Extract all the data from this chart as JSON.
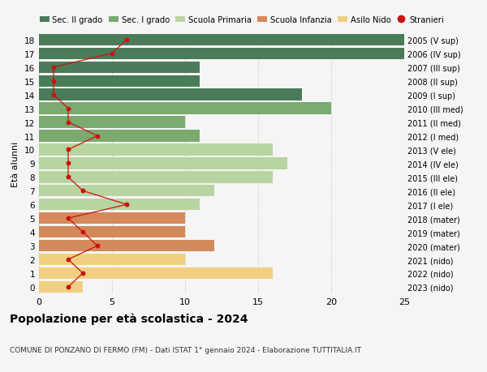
{
  "ages": [
    18,
    17,
    16,
    15,
    14,
    13,
    12,
    11,
    10,
    9,
    8,
    7,
    6,
    5,
    4,
    3,
    2,
    1,
    0
  ],
  "right_labels": [
    "2005 (V sup)",
    "2006 (IV sup)",
    "2007 (III sup)",
    "2008 (II sup)",
    "2009 (I sup)",
    "2010 (III med)",
    "2011 (II med)",
    "2012 (I med)",
    "2013 (V ele)",
    "2014 (IV ele)",
    "2015 (III ele)",
    "2016 (II ele)",
    "2017 (I ele)",
    "2018 (mater)",
    "2019 (mater)",
    "2020 (mater)",
    "2021 (nido)",
    "2022 (nido)",
    "2023 (nido)"
  ],
  "bar_values": [
    25,
    25,
    11,
    11,
    18,
    20,
    10,
    11,
    16,
    17,
    16,
    12,
    11,
    10,
    10,
    12,
    10,
    16,
    3
  ],
  "bar_colors": [
    "#4a7c59",
    "#4a7c59",
    "#4a7c59",
    "#4a7c59",
    "#4a7c59",
    "#7aaa6e",
    "#7aaa6e",
    "#7aaa6e",
    "#b8d4a0",
    "#b8d4a0",
    "#b8d4a0",
    "#b8d4a0",
    "#b8d4a0",
    "#d4895a",
    "#d4895a",
    "#d4895a",
    "#f0d080",
    "#f0d080",
    "#f0d080"
  ],
  "stranieri_values": [
    6,
    5,
    1,
    1,
    1,
    2,
    2,
    4,
    2,
    2,
    2,
    3,
    6,
    2,
    3,
    4,
    2,
    3,
    2
  ],
  "legend_labels": [
    "Sec. II grado",
    "Sec. I grado",
    "Scuola Primaria",
    "Scuola Infanzia",
    "Asilo Nido",
    "Stranieri"
  ],
  "legend_colors": [
    "#4a7c59",
    "#7aaa6e",
    "#b8d4a0",
    "#d4895a",
    "#f0d080",
    "#cc1111"
  ],
  "ylabel": "Età alunni",
  "title": "Popolazione per età scolastica - 2024",
  "subtitle": "COMUNE DI PONZANO DI FERMO (FM) - Dati ISTAT 1° gennaio 2024 - Elaborazione TUTTITALIA.IT",
  "xlim": [
    0,
    25
  ],
  "background_color": "#f5f5f5",
  "grid_color": "#cccccc"
}
